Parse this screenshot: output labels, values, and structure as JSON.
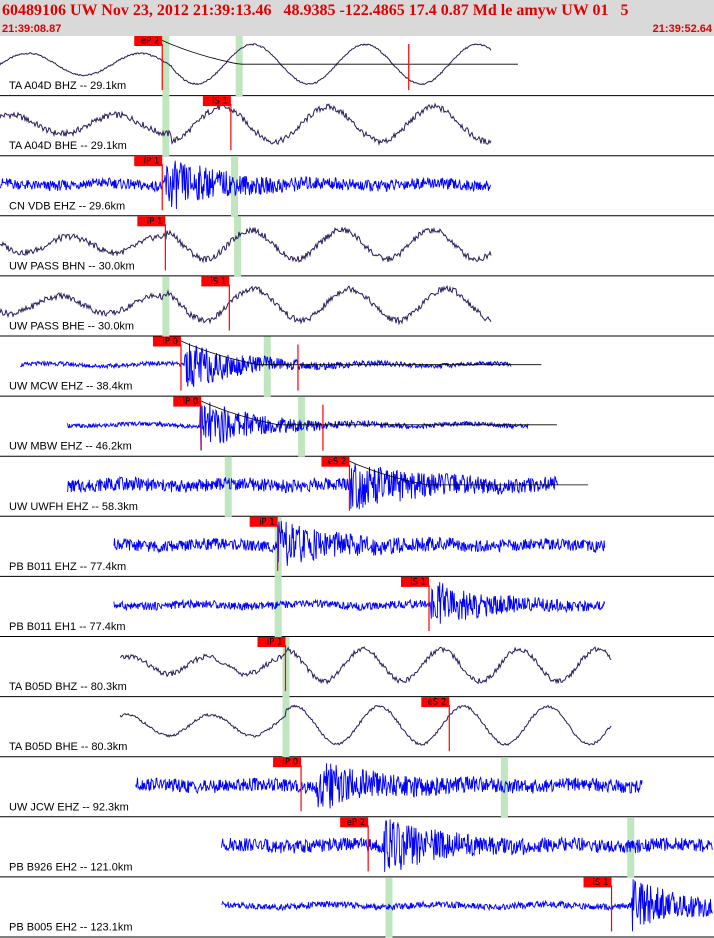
{
  "header": {
    "title": "60489106 UW Nov 23, 2012 21:39:13.46   48.9385 -122.4865 17.4 0.87 Md le amyw UW 01   5",
    "start_time": "21:39:08.87",
    "end_time": "21:39:52.64"
  },
  "colors": {
    "background": "#ffffff",
    "header_bg": "#d9d9d9",
    "header_text": "#e00000",
    "pick_label_bg": "#ff0000",
    "pick_band": "#bfe6bf",
    "trace_blue": "#0000ff",
    "trace_dark": "#2a1a5a",
    "pick_line": "#ff0000",
    "fit_curve": "#000000",
    "separator": "#000000"
  },
  "chart_data": {
    "type": "seismogram",
    "time_window": {
      "start": "21:39:08.87",
      "end": "21:39:52.64",
      "duration_s": 43.77
    },
    "traces": [
      {
        "label": "TA A04D BHZ -- 29.1km",
        "net": "TA",
        "sta": "A04D",
        "chan": "BHZ",
        "distance_km": 29.1,
        "style": "wave",
        "color": "dark",
        "start_s": 0.0,
        "end_s": 31.5,
        "onset_s": 11.0,
        "period_s": 7.2,
        "amp": 0.75,
        "noise": 0.03,
        "burst": 0.0,
        "picks": [
          {
            "label": "eP 2",
            "time_s": 10.4,
            "band_s": 10.6
          },
          {
            "label": "",
            "time_s": 26.2,
            "band_s": 15.3
          }
        ],
        "fit_curve": true
      },
      {
        "label": "TA A04D BHE -- 29.1km",
        "net": "TA",
        "sta": "A04D",
        "chan": "BHE",
        "distance_km": 29.1,
        "style": "wave",
        "color": "dark",
        "start_s": 0.0,
        "end_s": 31.5,
        "onset_s": 11.0,
        "period_s": 6.8,
        "amp": 0.65,
        "noise": 0.12,
        "burst": 0.0,
        "picks": [
          {
            "label": "iS 1",
            "time_s": 14.8,
            "band_s": 10.6
          }
        ],
        "fit_curve": false
      },
      {
        "label": "CN VDB EHZ -- 29.6km",
        "net": "CN",
        "sta": "VDB",
        "chan": "EHZ",
        "distance_km": 29.6,
        "style": "noise",
        "color": "blue",
        "start_s": 0.0,
        "end_s": 31.5,
        "onset_s": 10.5,
        "period_s": 0.25,
        "amp": 0.06,
        "noise": 0.2,
        "burst": 0.9,
        "picks": [
          {
            "label": "iP 1",
            "time_s": 10.4,
            "band_s": 15.0
          }
        ],
        "fit_curve": false
      },
      {
        "label": "UW PASS BHN -- 30.0km",
        "net": "UW",
        "sta": "PASS",
        "chan": "BHN",
        "distance_km": 30.0,
        "style": "wave",
        "color": "dark",
        "start_s": 0.0,
        "end_s": 31.5,
        "onset_s": 10.7,
        "period_s": 5.8,
        "amp": 0.55,
        "noise": 0.12,
        "burst": 0.0,
        "picks": [
          {
            "label": "iP 1",
            "time_s": 10.6,
            "band_s": 15.2
          }
        ],
        "fit_curve": false
      },
      {
        "label": "UW PASS BHE -- 30.0km",
        "net": "UW",
        "sta": "PASS",
        "chan": "BHE",
        "distance_km": 30.0,
        "style": "wave",
        "color": "dark",
        "start_s": 0.0,
        "end_s": 31.5,
        "onset_s": 10.7,
        "period_s": 6.2,
        "amp": 0.6,
        "noise": 0.12,
        "burst": 0.0,
        "picks": [
          {
            "label": "iS 1",
            "time_s": 14.7,
            "band_s": 10.6
          }
        ],
        "fit_curve": false
      },
      {
        "label": "UW MCW EHZ -- 38.4km",
        "net": "UW",
        "sta": "MCW",
        "chan": "EHZ",
        "distance_km": 38.4,
        "style": "noise",
        "color": "blue",
        "start_s": 1.3,
        "end_s": 32.8,
        "onset_s": 11.8,
        "period_s": 0.25,
        "amp": 0.05,
        "noise": 0.08,
        "burst": 0.9,
        "picks": [
          {
            "label": "iP 0",
            "time_s": 11.6,
            "band_s": 17.1
          },
          {
            "label": "",
            "time_s": 19.1,
            "band_s": 0
          }
        ],
        "fit_curve": true
      },
      {
        "label": "UW MBW EHZ -- 46.2km",
        "net": "UW",
        "sta": "MBW",
        "chan": "EHZ",
        "distance_km": 46.2,
        "style": "noise",
        "color": "blue",
        "start_s": 4.3,
        "end_s": 33.9,
        "onset_s": 12.8,
        "period_s": 0.25,
        "amp": 0.05,
        "noise": 0.08,
        "burst": 1.0,
        "picks": [
          {
            "label": "iP 0",
            "time_s": 12.9,
            "band_s": 19.3
          },
          {
            "label": "",
            "time_s": 20.7,
            "band_s": 0
          }
        ],
        "fit_curve": true
      },
      {
        "label": "UW UWFH EHZ -- 58.3km",
        "net": "UW",
        "sta": "UWFH",
        "chan": "EHZ",
        "distance_km": 58.3,
        "style": "noise",
        "color": "blue",
        "start_s": 4.3,
        "end_s": 35.8,
        "onset_s": 22.4,
        "period_s": 0.25,
        "amp": 0.05,
        "noise": 0.25,
        "burst": 0.85,
        "picks": [
          {
            "label": "eS 2",
            "time_s": 22.4,
            "band_s": 14.6
          }
        ],
        "fit_curve": true
      },
      {
        "label": "PB B011 EHZ -- 77.4km",
        "net": "PB",
        "sta": "B011",
        "chan": "EHZ",
        "distance_km": 77.4,
        "style": "noise",
        "color": "blue",
        "start_s": 7.3,
        "end_s": 38.8,
        "onset_s": 17.8,
        "period_s": 0.25,
        "amp": 0.05,
        "noise": 0.22,
        "burst": 0.8,
        "picks": [
          {
            "label": "iP 1",
            "time_s": 17.8,
            "band_s": 17.8
          }
        ],
        "fit_curve": false
      },
      {
        "label": "PB B011 EH1 -- 77.4km",
        "net": "PB",
        "sta": "B011",
        "chan": "EH1",
        "distance_km": 77.4,
        "style": "noise",
        "color": "blue",
        "start_s": 7.3,
        "end_s": 38.8,
        "onset_s": 27.6,
        "period_s": 0.25,
        "amp": 0.05,
        "noise": 0.15,
        "burst": 0.85,
        "picks": [
          {
            "label": "iS 1",
            "time_s": 27.5,
            "band_s": 17.8
          }
        ],
        "fit_curve": false
      },
      {
        "label": "TA B05D BHZ -- 80.3km",
        "net": "TA",
        "sta": "B05D",
        "chan": "BHZ",
        "distance_km": 80.3,
        "style": "wave",
        "color": "dark",
        "start_s": 7.7,
        "end_s": 39.2,
        "onset_s": 18.3,
        "period_s": 5.0,
        "amp": 0.6,
        "noise": 0.1,
        "burst": 0.0,
        "picks": [
          {
            "label": "iP 1",
            "time_s": 18.3,
            "band_s": 18.3
          }
        ],
        "fit_curve": false
      },
      {
        "label": "TA B05D BHE -- 80.3km",
        "net": "TA",
        "sta": "B05D",
        "chan": "BHE",
        "distance_km": 80.3,
        "style": "wave",
        "color": "dark",
        "start_s": 7.7,
        "end_s": 39.2,
        "onset_s": 18.3,
        "period_s": 5.4,
        "amp": 0.72,
        "noise": 0.05,
        "burst": 0.0,
        "picks": [
          {
            "label": "eS 2",
            "time_s": 28.8,
            "band_s": 18.3
          }
        ],
        "fit_curve": false
      },
      {
        "label": "UW JCW EHZ -- 92.3km",
        "net": "UW",
        "sta": "JCW",
        "chan": "EHZ",
        "distance_km": 92.3,
        "style": "noise",
        "color": "blue",
        "start_s": 8.7,
        "end_s": 41.2,
        "onset_s": 20.3,
        "period_s": 0.25,
        "amp": 0.05,
        "noise": 0.25,
        "burst": 0.8,
        "picks": [
          {
            "label": "iP 0",
            "time_s": 19.3,
            "band_s": 32.3
          }
        ],
        "fit_curve": false
      },
      {
        "label": "PB B926 EH2 -- 121.0km",
        "net": "PB",
        "sta": "B926",
        "chan": "EH2",
        "distance_km": 121.0,
        "style": "noise",
        "color": "blue",
        "start_s": 14.2,
        "end_s": 45.7,
        "onset_s": 24.6,
        "period_s": 0.25,
        "amp": 0.05,
        "noise": 0.25,
        "burst": 0.9,
        "picks": [
          {
            "label": "eP 2",
            "time_s": 23.6,
            "band_s": 40.4
          }
        ],
        "fit_curve": false
      },
      {
        "label": "PB B005 EH2 -- 123.1km",
        "net": "PB",
        "sta": "B005",
        "chan": "EH2",
        "distance_km": 123.1,
        "style": "noise",
        "color": "blue",
        "start_s": 14.2,
        "end_s": 45.7,
        "onset_s": 40.5,
        "period_s": 0.25,
        "amp": 0.05,
        "noise": 0.12,
        "burst": 0.9,
        "picks": [
          {
            "label": "iS 1",
            "time_s": 39.2,
            "band_s": 24.9
          }
        ],
        "fit_curve": false
      }
    ]
  }
}
